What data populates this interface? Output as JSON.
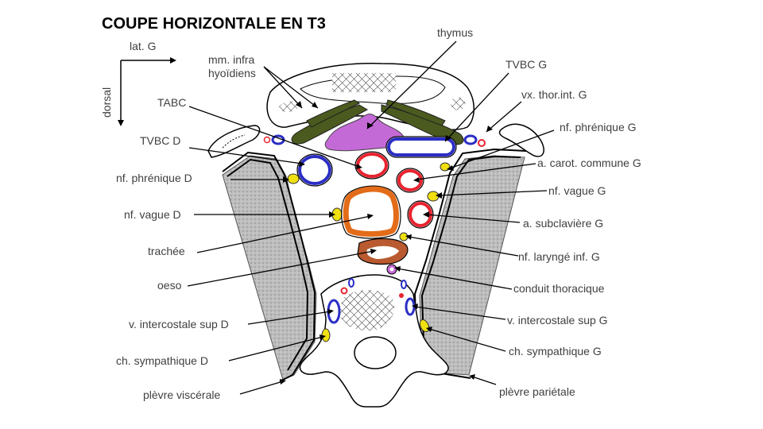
{
  "title": "COUPE HORIZONTALE EN T3",
  "orientation": {
    "lateral": "lat. G",
    "dorsal": "dorsal"
  },
  "labels": {
    "thymus": "thymus",
    "mm_infra": "mm. infra",
    "hyoidiens": "hyoïdiens",
    "tvbc_g": "TVBC G",
    "vx_thor_int_g": "vx. thor.int.  G",
    "tabc": "TABC",
    "nf_phrenique_g": "nf. phrénique  G",
    "tvbc_d": "TVBC D",
    "a_carot_commune_g": "a. carot. commune G",
    "nf_phrenique_d": "nf. phrénique  D",
    "nf_vague_g": "nf. vague G",
    "nf_vague_d": "nf. vague D",
    "a_subclaviere_g": "a. subclavière G",
    "trachee": "trachée",
    "nf_larynge_inf_g": "nf. laryngé inf. G",
    "oeso": "oeso",
    "conduit_thoracique": "conduit thoracique",
    "v_intercostale_sup_d": "v. intercostale sup D",
    "v_intercostale_sup_g": "v. intercostale sup G",
    "ch_sympathique_d": "ch. sympathique  D",
    "ch_sympathique_g": "ch. sympathique  G",
    "plevre_viscerale": "plèvre viscérale",
    "plevre_parietale": "plèvre pariétale"
  },
  "colors": {
    "artery": "#e8232f",
    "vein": "#2b2ec4",
    "nerve": "#f0e010",
    "muscle": "#4b5a1e",
    "thymus": "#c46ad6",
    "trachea": "#e36c1a",
    "esophagus": "#b95a30",
    "lung": "#b4b4b4"
  }
}
